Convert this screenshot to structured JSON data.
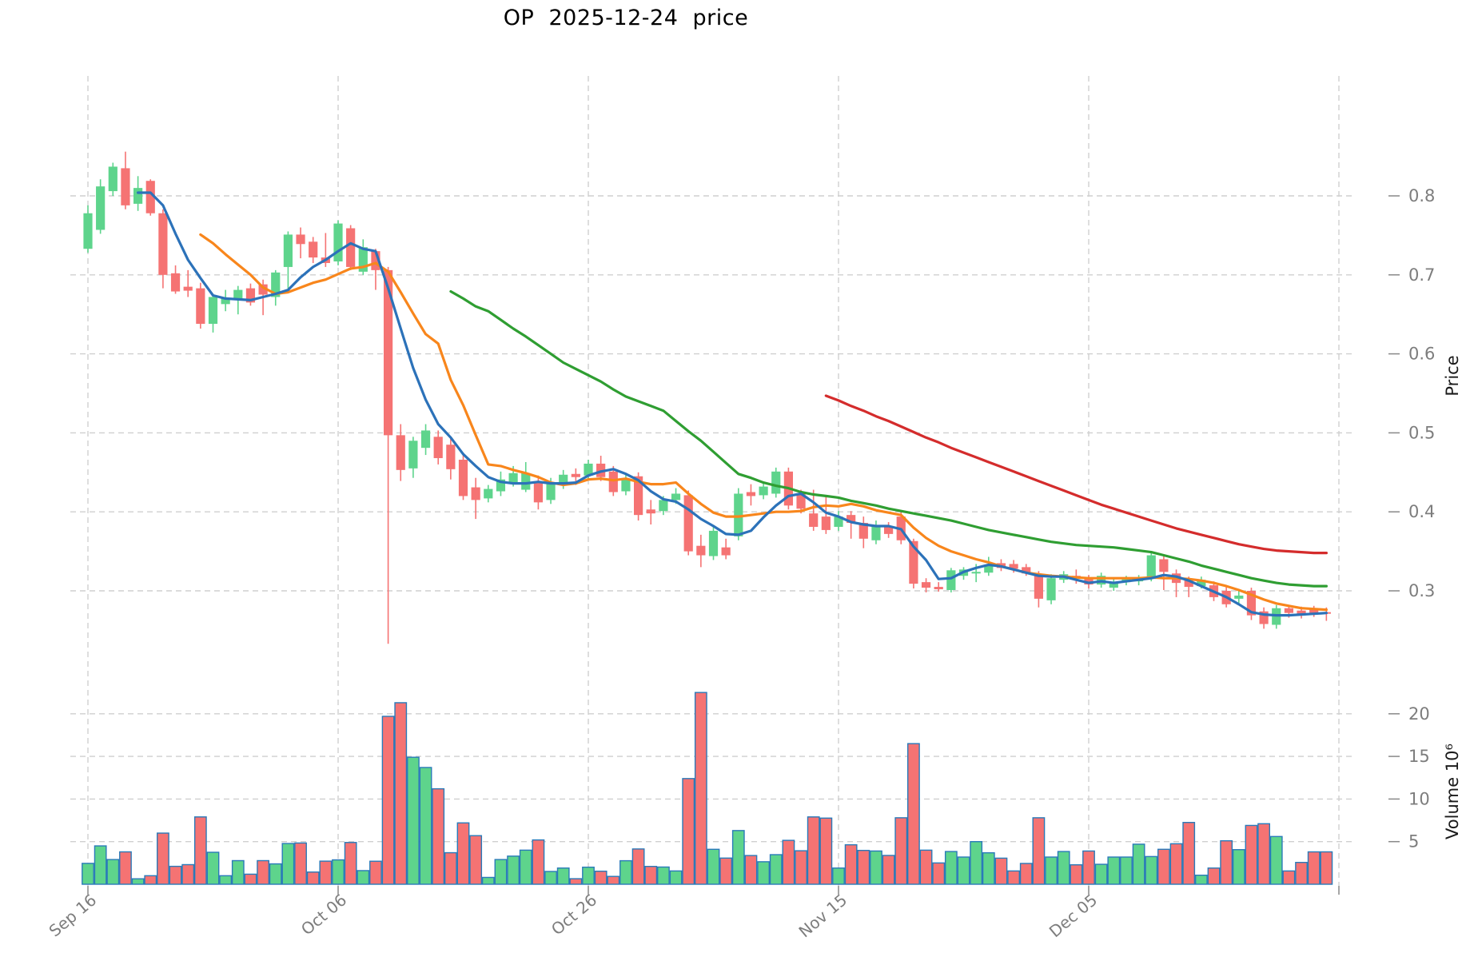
{
  "title": "OP  2025-12-24  price",
  "axes": {
    "price_label": "Price",
    "volume_label": "Volume  10⁶",
    "price_ticks": [
      0.8,
      0.7,
      0.6,
      0.5,
      0.4,
      0.3
    ],
    "volume_ticks": [
      20,
      15,
      10,
      5
    ]
  },
  "chart_data": {
    "type": "candlestick",
    "symbol": "OP",
    "title": "OP  2025-12-24  price",
    "subtitle_date": "2025-12-24",
    "x_start_label": "Sep 16",
    "x_end_date": "2025-12-24",
    "grid": true,
    "legend_position": "none",
    "price_ylim": [
      0.21,
      0.95
    ],
    "volume_ylim_millions": [
      0,
      95
    ],
    "x_ticks": [
      {
        "index": 0,
        "label": "Sep 16"
      },
      {
        "index": 20,
        "label": "Oct 06"
      },
      {
        "index": 40,
        "label": "Oct 26"
      },
      {
        "index": 60,
        "label": "Nov 15"
      },
      {
        "index": 80,
        "label": "Dec 05"
      },
      {
        "index": 100,
        "label": ""
      }
    ],
    "open": [
      0.733,
      0.757,
      0.806,
      0.835,
      0.79,
      0.819,
      0.778,
      0.702,
      0.685,
      0.683,
      0.638,
      0.663,
      0.67,
      0.683,
      0.688,
      0.672,
      0.71,
      0.751,
      0.742,
      0.722,
      0.717,
      0.759,
      0.704,
      0.73,
      0.706,
      0.497,
      0.455,
      0.481,
      0.495,
      0.485,
      0.466,
      0.431,
      0.417,
      0.426,
      0.437,
      0.428,
      0.437,
      0.415,
      0.434,
      0.448,
      0.446,
      0.461,
      0.451,
      0.426,
      0.445,
      0.403,
      0.401,
      0.415,
      0.421,
      0.357,
      0.344,
      0.355,
      0.369,
      0.425,
      0.421,
      0.423,
      0.451,
      0.423,
      0.398,
      0.394,
      0.381,
      0.396,
      0.386,
      0.364,
      0.381,
      0.394,
      0.363,
      0.311,
      0.305,
      0.301,
      0.319,
      0.322,
      0.323,
      0.335,
      0.334,
      0.33,
      0.32,
      0.288,
      0.314,
      0.319,
      0.316,
      0.308,
      0.304,
      0.311,
      0.312,
      0.315,
      0.34,
      0.322,
      0.313,
      0.306,
      0.307,
      0.3,
      0.29,
      0.3,
      0.274,
      0.257,
      0.278,
      0.275,
      0.277,
      0.273
    ],
    "high": [
      0.788,
      0.821,
      0.842,
      0.856,
      0.825,
      0.821,
      0.783,
      0.712,
      0.706,
      0.69,
      0.676,
      0.681,
      0.686,
      0.689,
      0.694,
      0.706,
      0.755,
      0.76,
      0.748,
      0.753,
      0.769,
      0.763,
      0.745,
      0.733,
      0.71,
      0.511,
      0.495,
      0.511,
      0.503,
      0.494,
      0.475,
      0.443,
      0.434,
      0.451,
      0.458,
      0.463,
      0.446,
      0.443,
      0.453,
      0.455,
      0.466,
      0.471,
      0.458,
      0.447,
      0.45,
      0.415,
      0.42,
      0.43,
      0.427,
      0.371,
      0.382,
      0.366,
      0.43,
      0.435,
      0.438,
      0.456,
      0.456,
      0.428,
      0.428,
      0.42,
      0.401,
      0.401,
      0.394,
      0.389,
      0.387,
      0.401,
      0.366,
      0.316,
      0.311,
      0.329,
      0.33,
      0.334,
      0.343,
      0.34,
      0.339,
      0.334,
      0.325,
      0.321,
      0.325,
      0.327,
      0.32,
      0.323,
      0.315,
      0.319,
      0.32,
      0.35,
      0.344,
      0.327,
      0.318,
      0.318,
      0.312,
      0.305,
      0.3,
      0.304,
      0.279,
      0.282,
      0.282,
      0.28,
      0.281,
      0.279
    ],
    "low": [
      0.728,
      0.752,
      0.8,
      0.783,
      0.781,
      0.775,
      0.683,
      0.676,
      0.672,
      0.632,
      0.627,
      0.654,
      0.65,
      0.661,
      0.649,
      0.661,
      0.68,
      0.721,
      0.715,
      0.71,
      0.712,
      0.706,
      0.7,
      0.681,
      0.233,
      0.439,
      0.443,
      0.472,
      0.46,
      0.441,
      0.415,
      0.391,
      0.412,
      0.42,
      0.432,
      0.425,
      0.403,
      0.41,
      0.429,
      0.434,
      0.441,
      0.439,
      0.42,
      0.421,
      0.389,
      0.384,
      0.396,
      0.41,
      0.345,
      0.33,
      0.339,
      0.34,
      0.364,
      0.408,
      0.416,
      0.418,
      0.403,
      0.398,
      0.376,
      0.372,
      0.376,
      0.366,
      0.354,
      0.359,
      0.367,
      0.359,
      0.303,
      0.298,
      0.299,
      0.298,
      0.314,
      0.311,
      0.319,
      0.325,
      0.323,
      0.319,
      0.279,
      0.283,
      0.31,
      0.309,
      0.303,
      0.304,
      0.3,
      0.307,
      0.307,
      0.312,
      0.301,
      0.292,
      0.292,
      0.303,
      0.287,
      0.279,
      0.283,
      0.263,
      0.252,
      0.252,
      0.266,
      0.265,
      0.267,
      0.262
    ],
    "close": [
      0.778,
      0.812,
      0.837,
      0.788,
      0.81,
      0.778,
      0.7,
      0.679,
      0.68,
      0.638,
      0.672,
      0.67,
      0.681,
      0.665,
      0.675,
      0.703,
      0.751,
      0.739,
      0.722,
      0.715,
      0.765,
      0.71,
      0.735,
      0.706,
      0.497,
      0.453,
      0.49,
      0.503,
      0.468,
      0.454,
      0.42,
      0.415,
      0.429,
      0.441,
      0.449,
      0.449,
      0.412,
      0.437,
      0.447,
      0.444,
      0.461,
      0.444,
      0.425,
      0.442,
      0.396,
      0.398,
      0.415,
      0.423,
      0.35,
      0.345,
      0.376,
      0.345,
      0.423,
      0.42,
      0.432,
      0.451,
      0.408,
      0.404,
      0.381,
      0.377,
      0.394,
      0.386,
      0.366,
      0.382,
      0.372,
      0.364,
      0.309,
      0.304,
      0.302,
      0.326,
      0.327,
      0.324,
      0.333,
      0.329,
      0.328,
      0.322,
      0.29,
      0.316,
      0.321,
      0.316,
      0.308,
      0.319,
      0.311,
      0.316,
      0.317,
      0.345,
      0.324,
      0.31,
      0.305,
      0.314,
      0.292,
      0.283,
      0.294,
      0.269,
      0.258,
      0.278,
      0.272,
      0.269,
      0.272,
      0.271
    ],
    "volume_millions": [
      2.45,
      4.5,
      2.9,
      3.8,
      0.64,
      1.0,
      6.0,
      2.1,
      2.3,
      7.9,
      3.75,
      1.0,
      2.77,
      1.18,
      2.77,
      2.39,
      4.78,
      4.84,
      1.43,
      2.71,
      2.86,
      4.9,
      1.6,
      2.7,
      19.7,
      21.3,
      14.9,
      13.7,
      11.2,
      3.7,
      7.2,
      5.7,
      0.8,
      2.9,
      3.3,
      4.0,
      5.2,
      1.5,
      1.9,
      0.65,
      2.0,
      1.53,
      0.92,
      2.76,
      4.14,
      2.09,
      2.02,
      1.56,
      12.4,
      22.5,
      4.1,
      3.07,
      6.3,
      3.37,
      2.64,
      3.47,
      5.15,
      3.93,
      7.9,
      7.76,
      1.9,
      4.63,
      3.97,
      3.9,
      3.38,
      7.8,
      16.5,
      4.0,
      2.5,
      3.84,
      3.19,
      5.0,
      3.69,
      3.06,
      1.56,
      2.44,
      7.8,
      3.19,
      3.84,
      2.28,
      3.9,
      2.34,
      3.19,
      3.19,
      4.7,
      3.25,
      4.1,
      4.75,
      7.25,
      1.06,
      1.9,
      5.1,
      4.06,
      6.9,
      7.1,
      5.6,
      1.56,
      2.56,
      3.8,
      3.8
    ],
    "ma_series": [
      {
        "name": "MA5",
        "color": "#2c72b9",
        "start_index": 4,
        "values": [
          0.804,
          0.804,
          0.788,
          0.752,
          0.719,
          0.696,
          0.674,
          0.67,
          0.669,
          0.668,
          0.672,
          0.676,
          0.681,
          0.697,
          0.71,
          0.719,
          0.73,
          0.74,
          0.733,
          0.73,
          0.683,
          0.632,
          0.582,
          0.542,
          0.511,
          0.494,
          0.473,
          0.458,
          0.444,
          0.438,
          0.436,
          0.436,
          0.438,
          0.436,
          0.436,
          0.437,
          0.446,
          0.451,
          0.454,
          0.448,
          0.44,
          0.426,
          0.416,
          0.413,
          0.403,
          0.391,
          0.382,
          0.372,
          0.371,
          0.376,
          0.393,
          0.408,
          0.42,
          0.423,
          0.412,
          0.399,
          0.394,
          0.387,
          0.384,
          0.382,
          0.382,
          0.378,
          0.356,
          0.339,
          0.315,
          0.316,
          0.324,
          0.329,
          0.333,
          0.331,
          0.327,
          0.323,
          0.319,
          0.318,
          0.318,
          0.314,
          0.31,
          0.312,
          0.31,
          0.312,
          0.314,
          0.316,
          0.32,
          0.318,
          0.313,
          0.306,
          0.299,
          0.292,
          0.283,
          0.273,
          0.27,
          0.269,
          0.269,
          0.27,
          0.271,
          0.272
        ]
      },
      {
        "name": "MA10",
        "color": "#f8861c",
        "start_index": 9,
        "values": [
          0.751,
          0.74,
          0.726,
          0.713,
          0.7,
          0.684,
          0.676,
          0.678,
          0.684,
          0.69,
          0.694,
          0.701,
          0.708,
          0.71,
          0.715,
          0.704,
          0.678,
          0.651,
          0.625,
          0.613,
          0.567,
          0.535,
          0.497,
          0.46,
          0.458,
          0.453,
          0.449,
          0.444,
          0.437,
          0.434,
          0.436,
          0.441,
          0.442,
          0.44,
          0.442,
          0.438,
          0.435,
          0.435,
          0.437,
          0.423,
          0.41,
          0.399,
          0.394,
          0.394,
          0.396,
          0.398,
          0.4,
          0.4,
          0.401,
          0.406,
          0.408,
          0.407,
          0.41,
          0.407,
          0.402,
          0.399,
          0.396,
          0.38,
          0.367,
          0.357,
          0.35,
          0.345,
          0.34,
          0.336,
          0.331,
          0.327,
          0.323,
          0.321,
          0.319,
          0.318,
          0.317,
          0.316,
          0.316,
          0.316,
          0.316,
          0.316,
          0.317,
          0.316,
          0.316,
          0.315,
          0.313,
          0.31,
          0.306,
          0.301,
          0.295,
          0.289,
          0.284,
          0.281,
          0.278,
          0.277,
          0.276
        ]
      },
      {
        "name": "MA30",
        "color": "#2f9e32",
        "start_index": 29,
        "values": [
          0.679,
          0.67,
          0.66,
          0.654,
          0.643,
          0.632,
          0.622,
          0.611,
          0.6,
          0.589,
          0.581,
          0.573,
          0.565,
          0.555,
          0.546,
          0.54,
          0.534,
          0.528,
          0.515,
          0.502,
          0.49,
          0.476,
          0.462,
          0.448,
          0.443,
          0.437,
          0.433,
          0.43,
          0.425,
          0.422,
          0.42,
          0.418,
          0.414,
          0.411,
          0.408,
          0.404,
          0.401,
          0.398,
          0.395,
          0.392,
          0.389,
          0.385,
          0.381,
          0.377,
          0.374,
          0.371,
          0.368,
          0.365,
          0.362,
          0.36,
          0.358,
          0.357,
          0.356,
          0.355,
          0.353,
          0.351,
          0.349,
          0.345,
          0.341,
          0.337,
          0.332,
          0.328,
          0.324,
          0.32,
          0.316,
          0.313,
          0.31,
          0.308,
          0.307,
          0.306,
          0.306
        ]
      },
      {
        "name": "MA60",
        "color": "#d42c2c",
        "start_index": 59,
        "values": [
          0.547,
          0.541,
          0.534,
          0.528,
          0.521,
          0.515,
          0.508,
          0.501,
          0.494,
          0.488,
          0.481,
          0.475,
          0.469,
          0.463,
          0.457,
          0.451,
          0.445,
          0.439,
          0.433,
          0.427,
          0.421,
          0.415,
          0.409,
          0.404,
          0.399,
          0.394,
          0.389,
          0.384,
          0.379,
          0.375,
          0.371,
          0.367,
          0.363,
          0.359,
          0.356,
          0.353,
          0.351,
          0.35,
          0.349,
          0.348,
          0.348
        ]
      }
    ],
    "colors": {
      "up": "#5ed48c",
      "down": "#f57373",
      "volume_border": "#2a7ab9",
      "grid": "#cfcfcf",
      "tick_text": "#7d7d7d",
      "axis_label_text": "#1a1a1a",
      "title_text": "#000000"
    }
  }
}
